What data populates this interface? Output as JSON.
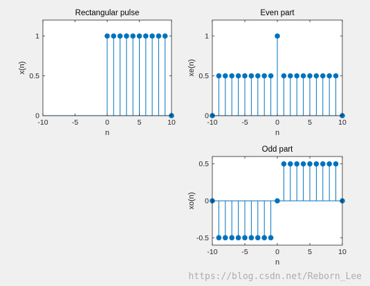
{
  "watermark": "https://blog.csdn.net/Reborn_Lee",
  "chart_data": [
    {
      "type": "stem",
      "title": "Rectangular pulse",
      "xlabel": "n",
      "ylabel": "x(n)",
      "xlim": [
        -10,
        10
      ],
      "ylim": [
        0,
        1.2
      ],
      "xticks": [
        -10,
        -5,
        0,
        5,
        10
      ],
      "yticks": [
        0,
        0.5,
        1
      ],
      "ytick_labels": [
        "0",
        "0.5",
        "1"
      ],
      "grid": false,
      "color": "#0072BD",
      "x": [
        0,
        1,
        2,
        3,
        4,
        5,
        6,
        7,
        8,
        9,
        10
      ],
      "y": [
        1,
        1,
        1,
        1,
        1,
        1,
        1,
        1,
        1,
        1,
        0
      ]
    },
    {
      "type": "stem",
      "title": "Even part",
      "xlabel": "n",
      "ylabel": "xe(n)",
      "xlim": [
        -10,
        10
      ],
      "ylim": [
        0,
        1.2
      ],
      "xticks": [
        -10,
        -5,
        0,
        5,
        10
      ],
      "yticks": [
        0,
        0.5,
        1
      ],
      "ytick_labels": [
        "0",
        "0.5",
        "1"
      ],
      "grid": false,
      "color": "#0072BD",
      "x": [
        -10,
        -9,
        -8,
        -7,
        -6,
        -5,
        -4,
        -3,
        -2,
        -1,
        0,
        1,
        2,
        3,
        4,
        5,
        6,
        7,
        8,
        9,
        10
      ],
      "y": [
        0,
        0.5,
        0.5,
        0.5,
        0.5,
        0.5,
        0.5,
        0.5,
        0.5,
        0.5,
        1,
        0.5,
        0.5,
        0.5,
        0.5,
        0.5,
        0.5,
        0.5,
        0.5,
        0.5,
        0
      ]
    },
    {
      "type": "stem",
      "title": "Odd part",
      "xlabel": "n",
      "ylabel": "xo(n)",
      "xlim": [
        -10,
        10
      ],
      "ylim": [
        -0.6,
        0.6
      ],
      "xticks": [
        -10,
        -5,
        0,
        5,
        10
      ],
      "yticks": [
        -0.5,
        0,
        0.5
      ],
      "ytick_labels": [
        "-0.5",
        "0",
        "0.5"
      ],
      "grid": false,
      "color": "#0072BD",
      "x": [
        -10,
        -9,
        -8,
        -7,
        -6,
        -5,
        -4,
        -3,
        -2,
        -1,
        0,
        1,
        2,
        3,
        4,
        5,
        6,
        7,
        8,
        9,
        10
      ],
      "y": [
        0,
        -0.5,
        -0.5,
        -0.5,
        -0.5,
        -0.5,
        -0.5,
        -0.5,
        -0.5,
        -0.5,
        0,
        0.5,
        0.5,
        0.5,
        0.5,
        0.5,
        0.5,
        0.5,
        0.5,
        0.5,
        0
      ]
    }
  ]
}
